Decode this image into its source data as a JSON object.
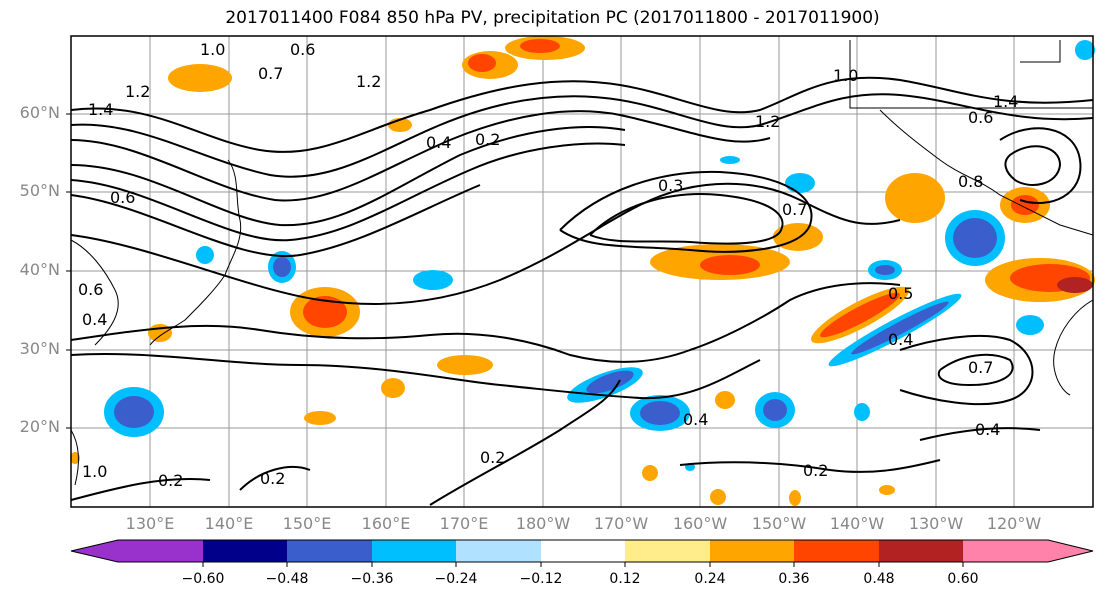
{
  "title": "2017011400 F084 850 hPa PV, precipitation PC (2017011800 - 2017011900)",
  "lat_labels": [
    "60°N",
    "50°N",
    "40°N",
    "30°N",
    "20°N"
  ],
  "lon_labels": [
    "130°E",
    "140°E",
    "150°E",
    "160°E",
    "170°E",
    "180°W",
    "170°W",
    "160°W",
    "150°W",
    "140°W",
    "130°W",
    "120°W"
  ],
  "colorbar": {
    "ticks": [
      "−0.60",
      "−0.48",
      "−0.36",
      "−0.24",
      "−0.12",
      "0.12",
      "0.24",
      "0.36",
      "0.48",
      "0.60"
    ],
    "colors": [
      "#9932cc",
      "#00008b",
      "#3a5fcd",
      "#00bfff",
      "#b0e2ff",
      "#ffffff",
      "#ffec8b",
      "#ffa500",
      "#ff4500",
      "#b22222",
      "#ff82ab"
    ]
  },
  "contour_labels": [
    "1.0",
    "0.6",
    "1.2",
    "0.7",
    "1.4",
    "1.2",
    "0.6",
    "0.4",
    "0.2",
    "1.0",
    "1.4",
    "0.6",
    "0.8",
    "1.2",
    "0.3",
    "0.7",
    "0.6",
    "0.4",
    "0.5",
    "0.4",
    "0.7",
    "0.4",
    "0.2",
    "0.2",
    "0.2",
    "0.2",
    "0.4"
  ],
  "contour_labels_dup": [
    "1.0",
    "0.6",
    "0.3",
    "0.6",
    "0.4",
    "0.2"
  ]
}
